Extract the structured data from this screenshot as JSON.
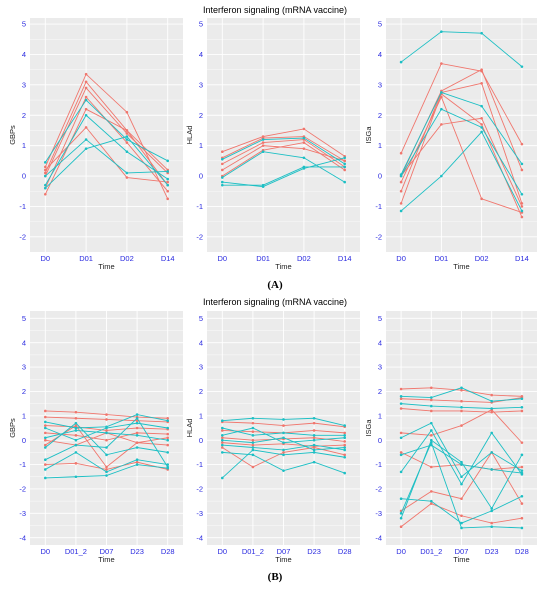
{
  "colors": {
    "red": "#f0766d",
    "teal": "#1cbfc4",
    "panel_bg": "#ebebeb",
    "grid": "#ffffff",
    "tick": "#2a2ae0"
  },
  "figure_A": {
    "title": "Interferon signaling (mRNA vaccine)",
    "caption": "(A)",
    "xlabel": "Time"
  },
  "figure_B": {
    "title": "Interferon signaling (mRNA vaccine)",
    "caption": "(B)",
    "xlabel": "Time"
  },
  "chart_data": [
    {
      "type": "line",
      "figure": "A",
      "ylabel": "GBPs",
      "categories": [
        "D0",
        "D01",
        "D02",
        "D14"
      ],
      "ylim": [
        -2.5,
        5.2
      ],
      "yticks": [
        -2,
        -1,
        0,
        1,
        2,
        3,
        4,
        5
      ],
      "series": [
        {
          "group": "red",
          "values": [
            0.3,
            3.35,
            2.1,
            -0.75
          ]
        },
        {
          "group": "red",
          "values": [
            0.1,
            3.1,
            1.5,
            -0.3
          ]
        },
        {
          "group": "red",
          "values": [
            0.0,
            2.9,
            1.4,
            0.1
          ]
        },
        {
          "group": "red",
          "values": [
            -0.4,
            2.6,
            1.1,
            -0.5
          ]
        },
        {
          "group": "red",
          "values": [
            -0.6,
            2.2,
            1.5,
            0.2
          ]
        },
        {
          "group": "red",
          "values": [
            0.2,
            1.6,
            -0.05,
            -0.2
          ]
        },
        {
          "group": "teal",
          "values": [
            0.45,
            2.5,
            1.2,
            0.5
          ]
        },
        {
          "group": "teal",
          "values": [
            -0.3,
            2.0,
            0.8,
            -0.1
          ]
        },
        {
          "group": "teal",
          "values": [
            0.0,
            1.2,
            0.1,
            0.15
          ]
        },
        {
          "group": "teal",
          "values": [
            -0.4,
            0.9,
            1.3,
            -0.3
          ]
        }
      ]
    },
    {
      "type": "line",
      "figure": "A",
      "ylabel": "HLAd",
      "categories": [
        "D0",
        "D01",
        "D02",
        "D14"
      ],
      "ylim": [
        -2.5,
        5.2
      ],
      "yticks": [
        -2,
        -1,
        0,
        1,
        2,
        3,
        4,
        5
      ],
      "series": [
        {
          "group": "red",
          "values": [
            0.8,
            1.3,
            1.55,
            0.65
          ]
        },
        {
          "group": "red",
          "values": [
            0.6,
            1.25,
            1.3,
            0.5
          ]
        },
        {
          "group": "red",
          "values": [
            0.4,
            1.1,
            1.2,
            0.3
          ]
        },
        {
          "group": "red",
          "values": [
            0.2,
            1.0,
            0.9,
            0.5
          ]
        },
        {
          "group": "red",
          "values": [
            0.0,
            0.85,
            1.1,
            0.2
          ]
        },
        {
          "group": "teal",
          "values": [
            0.55,
            1.2,
            1.25,
            0.4
          ]
        },
        {
          "group": "teal",
          "values": [
            -0.05,
            0.8,
            0.6,
            -0.2
          ]
        },
        {
          "group": "teal",
          "values": [
            -0.2,
            -0.35,
            0.25,
            0.6
          ]
        },
        {
          "group": "teal",
          "values": [
            -0.3,
            -0.3,
            0.3,
            0.3
          ]
        }
      ]
    },
    {
      "type": "line",
      "figure": "A",
      "ylabel": "ISGa",
      "categories": [
        "D0",
        "D01",
        "D02",
        "D14"
      ],
      "ylim": [
        -2.5,
        5.2
      ],
      "yticks": [
        -2,
        -1,
        0,
        1,
        2,
        3,
        4,
        5
      ],
      "series": [
        {
          "group": "red",
          "values": [
            0.75,
            3.7,
            3.45,
            1.05
          ]
        },
        {
          "group": "red",
          "values": [
            0.0,
            2.8,
            3.5,
            0.2
          ]
        },
        {
          "group": "red",
          "values": [
            -0.5,
            2.75,
            3.05,
            -0.9
          ]
        },
        {
          "group": "red",
          "values": [
            -0.9,
            2.7,
            1.7,
            -1.35
          ]
        },
        {
          "group": "red",
          "values": [
            0.0,
            1.7,
            1.9,
            -1.0
          ]
        },
        {
          "group": "red",
          "values": [
            -0.2,
            2.6,
            -0.75,
            -1.2
          ]
        },
        {
          "group": "teal",
          "values": [
            3.75,
            4.75,
            4.7,
            3.6
          ]
        },
        {
          "group": "teal",
          "values": [
            0.05,
            2.75,
            2.3,
            0.4
          ]
        },
        {
          "group": "teal",
          "values": [
            0.0,
            2.2,
            1.6,
            -0.6
          ]
        },
        {
          "group": "teal",
          "values": [
            -1.15,
            0.0,
            1.45,
            -1.15
          ]
        }
      ]
    },
    {
      "type": "line",
      "figure": "B",
      "ylabel": "GBPs",
      "categories": [
        "D0",
        "D01_2",
        "D07",
        "D23",
        "D28"
      ],
      "ylim": [
        -4.3,
        5.3
      ],
      "yticks": [
        -4,
        -3,
        -2,
        -1,
        0,
        1,
        2,
        3,
        4,
        5
      ],
      "series": [
        {
          "group": "red",
          "values": [
            1.2,
            1.15,
            1.05,
            0.95,
            0.9
          ]
        },
        {
          "group": "red",
          "values": [
            0.95,
            0.9,
            0.85,
            0.8,
            0.75
          ]
        },
        {
          "group": "red",
          "values": [
            0.6,
            0.55,
            0.4,
            0.5,
            0.45
          ]
        },
        {
          "group": "red",
          "values": [
            0.3,
            0.2,
            0.0,
            0.3,
            0.25
          ]
        },
        {
          "group": "red",
          "values": [
            0.0,
            -0.2,
            0.3,
            -0.1,
            -0.2
          ]
        },
        {
          "group": "red",
          "values": [
            -0.2,
            0.6,
            -1.1,
            -0.1,
            0.1
          ]
        },
        {
          "group": "red",
          "values": [
            -1.0,
            -0.95,
            -1.2,
            -0.9,
            -1.2
          ]
        },
        {
          "group": "teal",
          "values": [
            0.75,
            0.5,
            0.55,
            1.05,
            0.8
          ]
        },
        {
          "group": "teal",
          "values": [
            0.5,
            0.0,
            0.5,
            0.7,
            0.5
          ]
        },
        {
          "group": "teal",
          "values": [
            0.1,
            0.4,
            0.3,
            0.2,
            0.0
          ]
        },
        {
          "group": "teal",
          "values": [
            -0.3,
            0.7,
            -0.6,
            -0.3,
            -0.5
          ]
        },
        {
          "group": "teal",
          "values": [
            -0.8,
            -0.2,
            -0.3,
            0.9,
            -1.1
          ]
        },
        {
          "group": "teal",
          "values": [
            -1.2,
            -0.5,
            -1.3,
            -0.8,
            -1.0
          ]
        },
        {
          "group": "teal",
          "values": [
            -1.55,
            -1.5,
            -1.45,
            -1.0,
            -1.15
          ]
        }
      ]
    },
    {
      "type": "line",
      "figure": "B",
      "ylabel": "HLAd",
      "categories": [
        "D0",
        "D01_2",
        "D07",
        "D23",
        "D28"
      ],
      "ylim": [
        -4.3,
        5.3
      ],
      "yticks": [
        -4,
        -3,
        -2,
        -1,
        0,
        1,
        2,
        3,
        4,
        5
      ],
      "series": [
        {
          "group": "red",
          "values": [
            0.75,
            0.7,
            0.6,
            0.7,
            0.55
          ]
        },
        {
          "group": "red",
          "values": [
            0.4,
            0.35,
            0.3,
            0.4,
            0.3
          ]
        },
        {
          "group": "red",
          "values": [
            0.1,
            0.0,
            0.05,
            0.1,
            -0.05
          ]
        },
        {
          "group": "red",
          "values": [
            -0.1,
            -0.2,
            -0.15,
            -0.25,
            -0.2
          ]
        },
        {
          "group": "red",
          "values": [
            -0.3,
            -1.1,
            -0.5,
            -0.3,
            -0.6
          ]
        },
        {
          "group": "teal",
          "values": [
            0.8,
            0.9,
            0.85,
            0.9,
            0.6
          ]
        },
        {
          "group": "teal",
          "values": [
            0.5,
            0.2,
            0.3,
            0.2,
            0.2
          ]
        },
        {
          "group": "teal",
          "values": [
            0.2,
            0.5,
            -0.1,
            0.0,
            0.1
          ]
        },
        {
          "group": "teal",
          "values": [
            0.0,
            -0.1,
            0.1,
            -0.4,
            -0.3
          ]
        },
        {
          "group": "teal",
          "values": [
            -0.2,
            -0.3,
            -0.4,
            -0.2,
            -0.4
          ]
        },
        {
          "group": "teal",
          "values": [
            -0.5,
            -0.6,
            -1.25,
            -0.9,
            -1.35
          ]
        },
        {
          "group": "teal",
          "values": [
            -1.55,
            -0.4,
            -0.6,
            -0.5,
            -0.7
          ]
        }
      ]
    },
    {
      "type": "line",
      "figure": "B",
      "ylabel": "ISGa",
      "categories": [
        "D0",
        "D01_2",
        "D07",
        "D23",
        "D28"
      ],
      "ylim": [
        -4.3,
        5.3
      ],
      "yticks": [
        -4,
        -3,
        -2,
        -1,
        0,
        1,
        2,
        3,
        4,
        5
      ],
      "series": [
        {
          "group": "red",
          "values": [
            2.1,
            2.15,
            2.05,
            1.85,
            1.8
          ]
        },
        {
          "group": "red",
          "values": [
            1.7,
            1.65,
            1.6,
            1.55,
            1.75
          ]
        },
        {
          "group": "red",
          "values": [
            1.3,
            1.2,
            1.2,
            1.15,
            1.2
          ]
        },
        {
          "group": "red",
          "values": [
            0.3,
            0.2,
            0.6,
            1.25,
            -0.1
          ]
        },
        {
          "group": "red",
          "values": [
            -0.5,
            -1.1,
            -1.0,
            -1.2,
            -1.1
          ]
        },
        {
          "group": "red",
          "values": [
            -2.9,
            -2.1,
            -2.4,
            -0.5,
            -2.6
          ]
        },
        {
          "group": "red",
          "values": [
            -3.55,
            -2.6,
            -3.1,
            -3.4,
            -3.2
          ]
        },
        {
          "group": "teal",
          "values": [
            1.8,
            1.75,
            2.15,
            1.6,
            1.7
          ]
        },
        {
          "group": "teal",
          "values": [
            1.5,
            1.4,
            1.35,
            1.3,
            1.35
          ]
        },
        {
          "group": "teal",
          "values": [
            0.1,
            0.7,
            -1.5,
            -0.5,
            -1.25
          ]
        },
        {
          "group": "teal",
          "values": [
            -0.6,
            -0.2,
            -1.0,
            -1.2,
            -1.35
          ]
        },
        {
          "group": "teal",
          "values": [
            -1.3,
            0.4,
            -1.8,
            0.3,
            -1.4
          ]
        },
        {
          "group": "teal",
          "values": [
            -2.4,
            -2.5,
            -3.4,
            -2.9,
            -2.3
          ]
        },
        {
          "group": "teal",
          "values": [
            -3.0,
            -0.1,
            -3.6,
            -3.55,
            -3.6
          ]
        },
        {
          "group": "teal",
          "values": [
            -3.2,
            0.0,
            -0.9,
            -2.8,
            -0.6
          ]
        }
      ]
    }
  ]
}
